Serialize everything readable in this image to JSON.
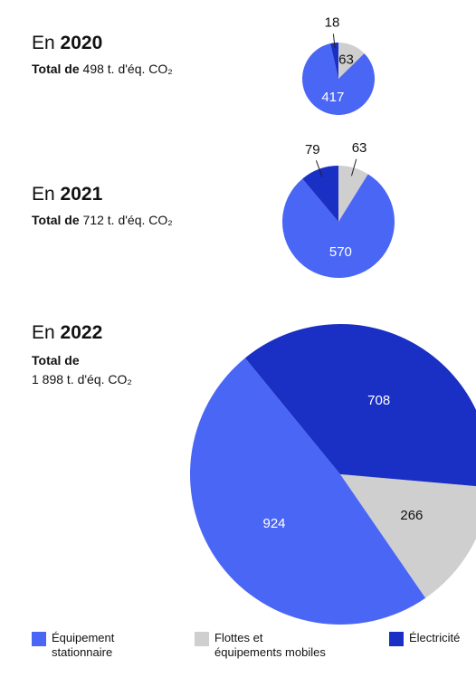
{
  "chart_data": [
    {
      "type": "pie",
      "title_prefix": "En",
      "title_year": "2020",
      "total_label": "Total de",
      "total": "498 t. d'éq. CO₂",
      "values": [
        63,
        417,
        18
      ]
    },
    {
      "type": "pie",
      "title_prefix": "En",
      "title_year": "2021",
      "total_label": "Total de",
      "total": "712 t. d'éq. CO₂",
      "values": [
        63,
        570,
        79
      ]
    },
    {
      "type": "pie",
      "title_prefix": "En",
      "title_year": "2022",
      "total_label": "Total de",
      "total": "1 898 t. d'éq. CO₂",
      "values": [
        266,
        924,
        708
      ]
    }
  ],
  "legend": {
    "labels": [
      "Flottes et équipements mobiles",
      "Équipement stationnaire",
      "Électricité"
    ],
    "colors": [
      "#cfcfcf",
      "#4a66f5",
      "#1a2fc4"
    ]
  }
}
